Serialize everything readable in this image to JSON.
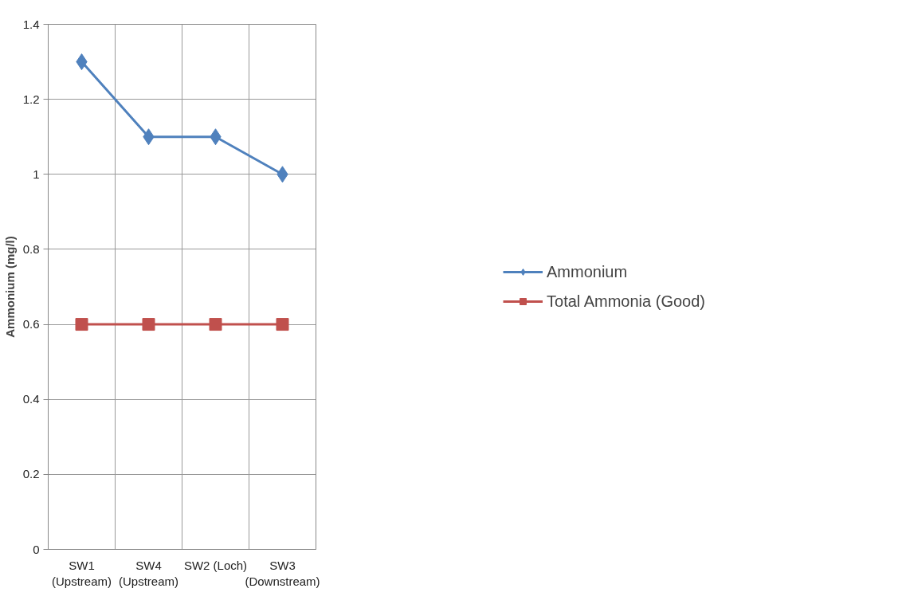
{
  "chart_data": {
    "type": "line",
    "ylabel": "Ammonium (mg/l)",
    "categories": [
      "SW1\n(Upstream)",
      "SW4\n(Upstream)",
      "SW2 (Loch)",
      "SW3\n(Downstream)"
    ],
    "series": [
      {
        "name": "Ammonium",
        "color": "#4f81bd",
        "values": [
          1.3,
          1.1,
          1.1,
          1.0
        ],
        "marker": "diamond"
      },
      {
        "name": "Total Ammonia (Good)",
        "color": "#c0504d",
        "values": [
          0.6,
          0.6,
          0.6,
          0.6
        ],
        "marker": "square"
      }
    ],
    "ylim": [
      0,
      1.4
    ],
    "yticks": [
      0,
      0.2,
      0.4,
      0.6,
      0.8,
      1,
      1.2,
      1.4
    ],
    "grid": true,
    "legend": "right"
  }
}
